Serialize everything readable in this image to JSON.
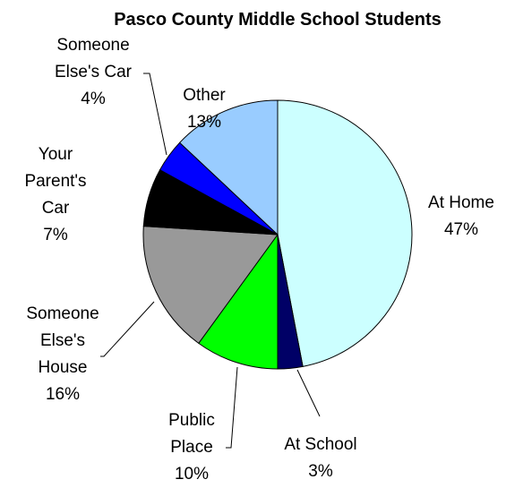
{
  "chart_data": {
    "type": "pie",
    "title": "Pasco County Middle School Students",
    "legend": "none",
    "slices": [
      {
        "label_lines": [
          "At Home",
          "47%"
        ],
        "value": 47,
        "color": "#ccffff"
      },
      {
        "label_lines": [
          "At School",
          "3%"
        ],
        "value": 3,
        "color": "#000066"
      },
      {
        "label_lines": [
          "Public",
          "Place",
          "10%"
        ],
        "value": 10,
        "color": "#00ff00"
      },
      {
        "label_lines": [
          "Someone",
          "Else's",
          "House",
          "16%"
        ],
        "value": 16,
        "color": "#999999"
      },
      {
        "label_lines": [
          "Your",
          "Parent's",
          "Car",
          "7%"
        ],
        "value": 7,
        "color": "#000000"
      },
      {
        "label_lines": [
          "Someone",
          "Else's Car",
          "4%"
        ],
        "value": 4,
        "color": "#0000ff"
      },
      {
        "label_lines": [
          "Other",
          "13%"
        ],
        "value": 13,
        "color": "#99ccff"
      }
    ]
  }
}
